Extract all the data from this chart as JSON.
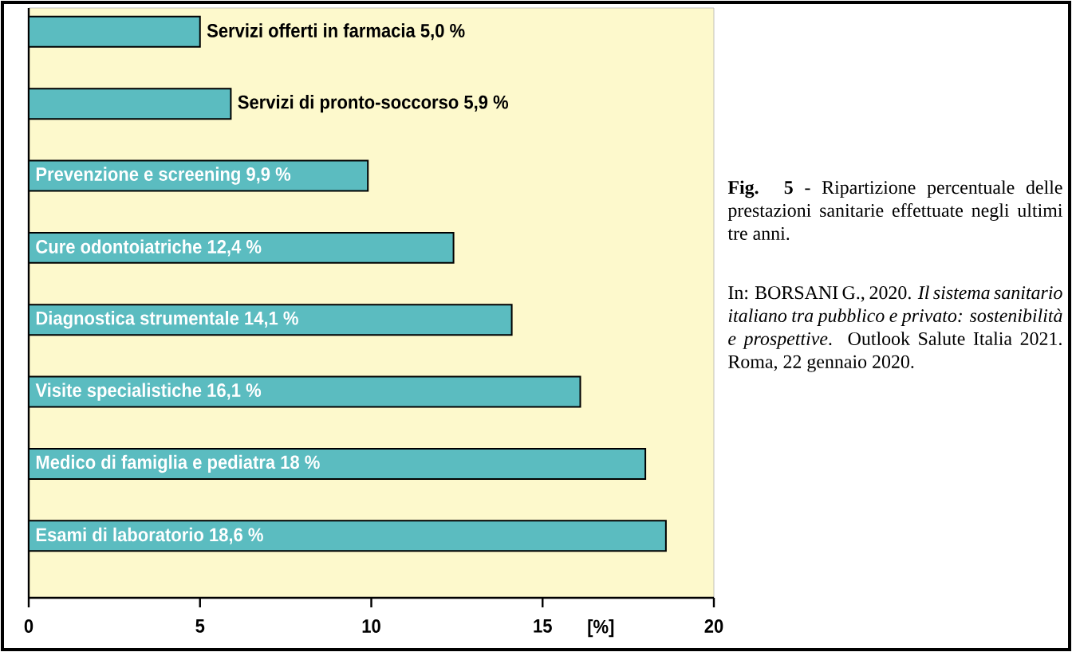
{
  "chart_data": {
    "type": "bar",
    "orientation": "horizontal",
    "categories": [
      "Servizi offerti in farmacia 5,0 %",
      "Servizi di pronto-soccorso 5,9 %",
      "Prevenzione e screening 9,9 %",
      "Cure odontoiatriche 12,4 %",
      "Diagnostica strumentale 14,1 %",
      "Visite specialistiche 16,1 %",
      "Medico di famiglia e pediatra 18 %",
      "Esami di laboratorio 18,6 %"
    ],
    "values": [
      5.0,
      5.9,
      9.9,
      12.4,
      14.1,
      16.1,
      18,
      18.6
    ],
    "color": "#5bbcc0",
    "xlim": [
      0,
      20
    ],
    "xticks": [
      0,
      5,
      10,
      15,
      20
    ],
    "xlabel": "[%]",
    "grid": false,
    "annotations": [
      "**Fig. 5** - Ripartizione percentuale delle prestazioni sanitarie effettuate negli ultimi tre anni.",
      "In: BORSANI G., 2020. *Il sistema sanitario italiano tra pubblico e privato: sostenibilità e prospettive*. Outlook Salute Italia 2021. Roma, 22 gennaio 2020."
    ]
  }
}
